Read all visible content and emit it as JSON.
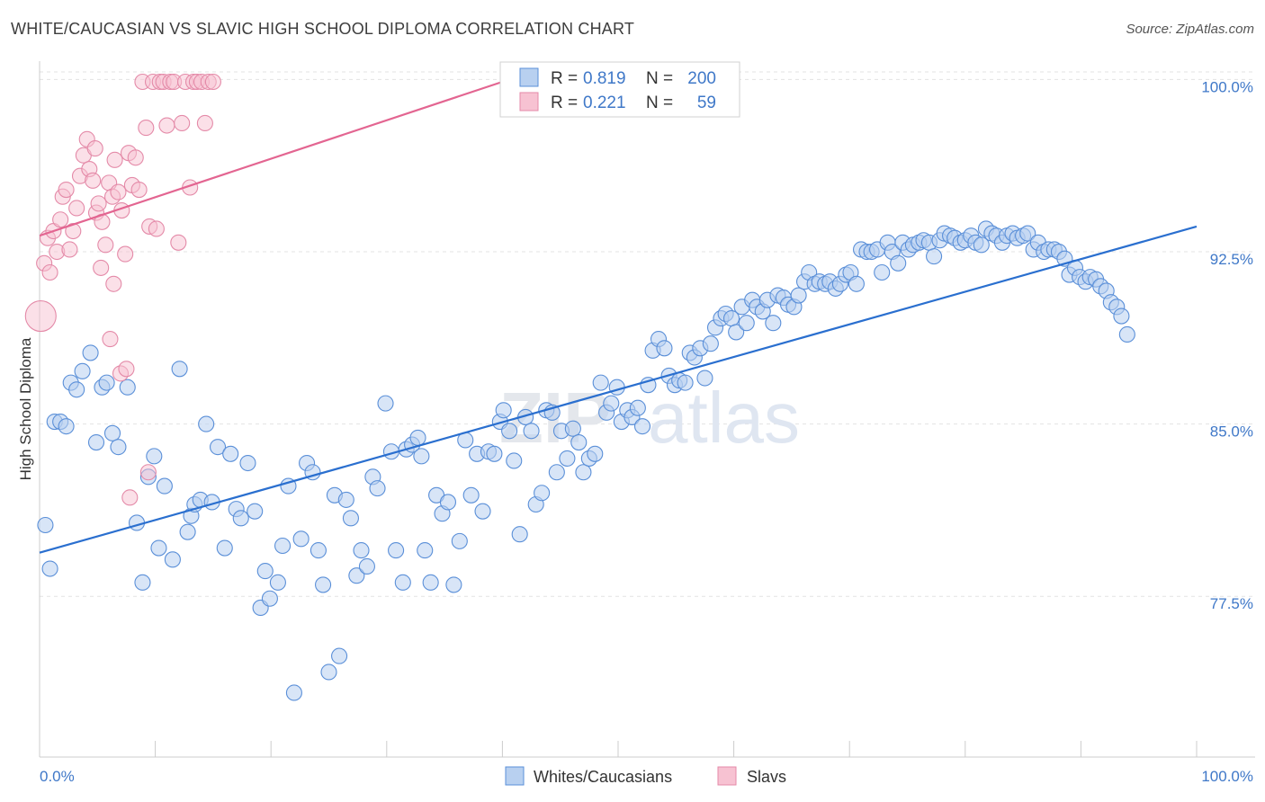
{
  "title": "WHITE/CAUCASIAN VS SLAVIC HIGH SCHOOL DIPLOMA CORRELATION CHART",
  "source": "Source: ZipAtlas.com",
  "watermark": {
    "part1": "ZIP",
    "part2": "atlas"
  },
  "colors": {
    "blue_fill": "#b8d0f0",
    "blue_stroke": "#5a8fd8",
    "blue_line": "#2a6fcf",
    "pink_fill": "#f7c2d2",
    "pink_stroke": "#e48aa8",
    "pink_line": "#e36591",
    "tick_text": "#3f78c8",
    "grid": "#e3e3e3"
  },
  "legend": {
    "rows": [
      {
        "r_label": "R = ",
        "r_value": "0.819",
        "n_label": "N = ",
        "n_value": "200"
      },
      {
        "r_label": "R = ",
        "r_value": "0.221",
        "n_label": "N = ",
        "n_value": "59"
      }
    ]
  },
  "bottom_legend": [
    "Whites/Caucasians",
    "Slavs"
  ],
  "chart_data": {
    "type": "scatter",
    "title": "WHITE/CAUCASIAN VS SLAVIC HIGH SCHOOL DIPLOMA CORRELATION CHART",
    "xlabel": "",
    "ylabel": "High School Diploma",
    "xlim": [
      0,
      100
    ],
    "ylim": [
      70.5,
      100.8
    ],
    "x_tick_labels": [
      "0.0%",
      "100.0%"
    ],
    "y_ticks": [
      77.5,
      85.0,
      92.5,
      100.0
    ],
    "y_tick_labels": [
      "77.5%",
      "85.0%",
      "92.5%",
      "100.0%"
    ],
    "grid": true,
    "legend_position": "top-center",
    "series": [
      {
        "name": "Whites/Caucasians",
        "R": 0.819,
        "N": 200,
        "trend": [
          [
            0,
            79.4
          ],
          [
            100,
            93.6
          ]
        ],
        "points": [
          [
            0.5,
            80.6
          ],
          [
            0.9,
            78.7
          ],
          [
            1.3,
            85.1
          ],
          [
            1.8,
            85.1
          ],
          [
            2.3,
            84.9
          ],
          [
            2.7,
            86.8
          ],
          [
            3.2,
            86.5
          ],
          [
            3.7,
            87.3
          ],
          [
            4.4,
            88.1
          ],
          [
            4.9,
            84.2
          ],
          [
            5.4,
            86.6
          ],
          [
            5.8,
            86.8
          ],
          [
            6.3,
            84.6
          ],
          [
            6.8,
            84.0
          ],
          [
            7.6,
            86.6
          ],
          [
            8.4,
            80.7
          ],
          [
            8.9,
            78.1
          ],
          [
            9.4,
            82.7
          ],
          [
            9.9,
            83.6
          ],
          [
            10.3,
            79.6
          ],
          [
            10.8,
            82.3
          ],
          [
            11.5,
            79.1
          ],
          [
            12.1,
            87.4
          ],
          [
            12.8,
            80.3
          ],
          [
            13.1,
            81.0
          ],
          [
            13.4,
            81.5
          ],
          [
            13.9,
            81.7
          ],
          [
            14.4,
            85.0
          ],
          [
            14.9,
            81.6
          ],
          [
            15.4,
            84.0
          ],
          [
            16.0,
            79.6
          ],
          [
            16.5,
            83.7
          ],
          [
            17.0,
            81.3
          ],
          [
            17.4,
            80.9
          ],
          [
            18.0,
            83.3
          ],
          [
            18.6,
            81.2
          ],
          [
            19.1,
            77.0
          ],
          [
            19.5,
            78.6
          ],
          [
            19.9,
            77.4
          ],
          [
            20.6,
            78.1
          ],
          [
            21.0,
            79.7
          ],
          [
            21.5,
            82.3
          ],
          [
            22.0,
            73.3
          ],
          [
            22.6,
            80.0
          ],
          [
            23.1,
            83.3
          ],
          [
            23.6,
            82.9
          ],
          [
            24.1,
            79.5
          ],
          [
            24.5,
            78.0
          ],
          [
            25.0,
            74.2
          ],
          [
            25.5,
            81.9
          ],
          [
            25.9,
            74.9
          ],
          [
            26.5,
            81.7
          ],
          [
            26.9,
            80.9
          ],
          [
            27.4,
            78.4
          ],
          [
            27.8,
            79.5
          ],
          [
            28.3,
            78.8
          ],
          [
            28.8,
            82.7
          ],
          [
            29.2,
            82.2
          ],
          [
            29.9,
            85.9
          ],
          [
            30.4,
            83.8
          ],
          [
            30.8,
            79.5
          ],
          [
            31.4,
            78.1
          ],
          [
            31.7,
            83.9
          ],
          [
            32.2,
            84.1
          ],
          [
            32.7,
            84.4
          ],
          [
            33.0,
            83.6
          ],
          [
            33.3,
            79.5
          ],
          [
            33.8,
            78.1
          ],
          [
            34.3,
            81.9
          ],
          [
            34.8,
            81.1
          ],
          [
            35.3,
            81.6
          ],
          [
            35.8,
            78.0
          ],
          [
            36.3,
            79.9
          ],
          [
            36.8,
            84.3
          ],
          [
            37.3,
            81.9
          ],
          [
            37.8,
            83.7
          ],
          [
            38.3,
            81.2
          ],
          [
            38.8,
            83.8
          ],
          [
            39.3,
            83.7
          ],
          [
            39.8,
            85.1
          ],
          [
            40.1,
            85.6
          ],
          [
            40.6,
            84.7
          ],
          [
            41.0,
            83.4
          ],
          [
            41.5,
            80.2
          ],
          [
            42.0,
            85.3
          ],
          [
            42.5,
            84.7
          ],
          [
            42.9,
            81.5
          ],
          [
            43.4,
            82.0
          ],
          [
            43.8,
            85.6
          ],
          [
            44.3,
            85.5
          ],
          [
            44.7,
            82.9
          ],
          [
            45.1,
            84.7
          ],
          [
            45.6,
            83.5
          ],
          [
            46.1,
            84.8
          ],
          [
            46.6,
            84.2
          ],
          [
            47.0,
            82.9
          ],
          [
            47.5,
            83.5
          ],
          [
            48.0,
            83.7
          ],
          [
            48.5,
            86.8
          ],
          [
            49.0,
            85.5
          ],
          [
            49.4,
            85.9
          ],
          [
            49.9,
            86.6
          ],
          [
            50.3,
            85.1
          ],
          [
            50.8,
            85.6
          ],
          [
            51.2,
            85.3
          ],
          [
            51.7,
            85.7
          ],
          [
            52.1,
            84.9
          ],
          [
            52.6,
            86.7
          ],
          [
            53.0,
            88.2
          ],
          [
            53.5,
            88.7
          ],
          [
            54.0,
            88.3
          ],
          [
            54.4,
            87.1
          ],
          [
            54.9,
            86.7
          ],
          [
            55.3,
            86.9
          ],
          [
            55.8,
            86.8
          ],
          [
            56.2,
            88.1
          ],
          [
            56.6,
            87.9
          ],
          [
            57.1,
            88.3
          ],
          [
            57.5,
            87.0
          ],
          [
            58.0,
            88.5
          ],
          [
            58.4,
            89.2
          ],
          [
            58.9,
            89.6
          ],
          [
            59.3,
            89.8
          ],
          [
            59.8,
            89.6
          ],
          [
            60.2,
            89.0
          ],
          [
            60.7,
            90.1
          ],
          [
            61.1,
            89.4
          ],
          [
            61.6,
            90.4
          ],
          [
            62.0,
            90.1
          ],
          [
            62.5,
            89.9
          ],
          [
            62.9,
            90.4
          ],
          [
            63.4,
            89.4
          ],
          [
            63.8,
            90.6
          ],
          [
            64.3,
            90.5
          ],
          [
            64.7,
            90.2
          ],
          [
            65.2,
            90.1
          ],
          [
            65.6,
            90.6
          ],
          [
            66.1,
            91.2
          ],
          [
            66.5,
            91.6
          ],
          [
            67.0,
            91.1
          ],
          [
            67.4,
            91.2
          ],
          [
            67.9,
            91.1
          ],
          [
            68.3,
            91.2
          ],
          [
            68.8,
            90.9
          ],
          [
            69.2,
            91.1
          ],
          [
            69.7,
            91.5
          ],
          [
            70.1,
            91.6
          ],
          [
            70.6,
            91.1
          ],
          [
            71.0,
            92.6
          ],
          [
            71.5,
            92.5
          ],
          [
            71.9,
            92.5
          ],
          [
            72.4,
            92.6
          ],
          [
            72.8,
            91.6
          ],
          [
            73.3,
            92.9
          ],
          [
            73.7,
            92.5
          ],
          [
            74.2,
            92.0
          ],
          [
            74.6,
            92.9
          ],
          [
            75.1,
            92.6
          ],
          [
            75.5,
            92.8
          ],
          [
            76.0,
            92.9
          ],
          [
            76.4,
            93.0
          ],
          [
            76.9,
            92.9
          ],
          [
            77.3,
            92.3
          ],
          [
            77.8,
            93.0
          ],
          [
            78.2,
            93.3
          ],
          [
            78.7,
            93.2
          ],
          [
            79.1,
            93.1
          ],
          [
            79.6,
            92.9
          ],
          [
            80.0,
            93.0
          ],
          [
            80.5,
            93.2
          ],
          [
            80.9,
            92.9
          ],
          [
            81.4,
            92.8
          ],
          [
            81.8,
            93.5
          ],
          [
            82.3,
            93.3
          ],
          [
            82.7,
            93.2
          ],
          [
            83.2,
            92.9
          ],
          [
            83.6,
            93.2
          ],
          [
            84.1,
            93.3
          ],
          [
            84.5,
            93.1
          ],
          [
            85.0,
            93.2
          ],
          [
            85.4,
            93.3
          ],
          [
            85.9,
            92.6
          ],
          [
            86.3,
            92.9
          ],
          [
            86.8,
            92.5
          ],
          [
            87.2,
            92.6
          ],
          [
            87.7,
            92.6
          ],
          [
            88.1,
            92.5
          ],
          [
            88.6,
            92.2
          ],
          [
            89.0,
            91.5
          ],
          [
            89.5,
            91.8
          ],
          [
            89.9,
            91.4
          ],
          [
            90.4,
            91.2
          ],
          [
            90.8,
            91.4
          ],
          [
            91.3,
            91.3
          ],
          [
            91.7,
            91.0
          ],
          [
            92.2,
            90.8
          ],
          [
            92.6,
            90.3
          ],
          [
            93.1,
            90.1
          ],
          [
            93.5,
            89.7
          ],
          [
            94.0,
            88.9
          ]
        ]
      },
      {
        "name": "Slavs",
        "R": 0.221,
        "N": 59,
        "trend": [
          [
            0,
            93.2
          ],
          [
            40,
            99.9
          ]
        ],
        "points": [
          [
            0.1,
            89.7
          ],
          [
            0.4,
            92.0
          ],
          [
            0.7,
            93.1
          ],
          [
            0.9,
            91.6
          ],
          [
            1.2,
            93.4
          ],
          [
            1.5,
            92.5
          ],
          [
            1.8,
            93.9
          ],
          [
            2.0,
            94.9
          ],
          [
            2.3,
            95.2
          ],
          [
            2.6,
            92.6
          ],
          [
            2.9,
            93.4
          ],
          [
            3.2,
            94.4
          ],
          [
            3.5,
            95.8
          ],
          [
            3.8,
            96.7
          ],
          [
            4.1,
            97.4
          ],
          [
            4.3,
            96.1
          ],
          [
            4.6,
            95.6
          ],
          [
            4.9,
            94.2
          ],
          [
            5.1,
            94.6
          ],
          [
            5.4,
            93.8
          ],
          [
            5.7,
            92.8
          ],
          [
            6.0,
            95.5
          ],
          [
            6.3,
            94.9
          ],
          [
            6.5,
            96.5
          ],
          [
            6.8,
            95.1
          ],
          [
            7.1,
            94.3
          ],
          [
            7.4,
            92.4
          ],
          [
            7.7,
            96.8
          ],
          [
            8.0,
            95.4
          ],
          [
            8.3,
            96.6
          ],
          [
            8.6,
            95.2
          ],
          [
            8.9,
            99.9
          ],
          [
            9.2,
            97.9
          ],
          [
            9.5,
            93.6
          ],
          [
            9.8,
            99.9
          ],
          [
            10.1,
            93.5
          ],
          [
            10.4,
            99.9
          ],
          [
            10.7,
            99.9
          ],
          [
            11.0,
            98.0
          ],
          [
            11.3,
            99.9
          ],
          [
            11.6,
            99.9
          ],
          [
            12.0,
            92.9
          ],
          [
            12.3,
            98.1
          ],
          [
            12.6,
            99.9
          ],
          [
            13.0,
            95.3
          ],
          [
            13.3,
            99.9
          ],
          [
            13.6,
            99.9
          ],
          [
            14.0,
            99.9
          ],
          [
            14.3,
            98.1
          ],
          [
            14.6,
            99.9
          ],
          [
            4.8,
            97.0
          ],
          [
            5.3,
            91.8
          ],
          [
            6.1,
            88.7
          ],
          [
            6.4,
            91.1
          ],
          [
            7.0,
            87.2
          ],
          [
            7.5,
            87.4
          ],
          [
            7.8,
            81.8
          ],
          [
            9.4,
            82.9
          ],
          [
            15.0,
            99.9
          ]
        ]
      }
    ]
  }
}
